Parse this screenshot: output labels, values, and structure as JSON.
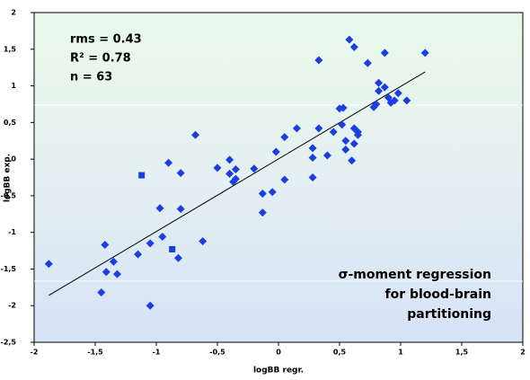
{
  "chart_data": {
    "type": "scatter",
    "x_label": "logBB regr.",
    "y_label": "logBB exp.",
    "stats": [
      "rms = 0.43",
      "R² = 0.78",
      "n = 63"
    ],
    "annotation": [
      "σ-moment regression",
      "for blood-brain",
      "partitioning"
    ],
    "xlim": [
      -2,
      2
    ],
    "ylim": [
      -2.5,
      2
    ],
    "xticks": [
      -2,
      {
        "value": -1.5,
        "label": "-1,5"
      },
      -1,
      {
        "value": -0.5,
        "label": "-0,5"
      },
      0,
      {
        "value": 0.5,
        "label": "0,5"
      },
      1,
      {
        "value": 1.5,
        "label": "1,5"
      },
      2
    ],
    "yticks": [
      {
        "value": -2.5,
        "label": "-2,5"
      },
      -2,
      {
        "value": -1.5,
        "label": "-1,5"
      },
      -1,
      {
        "value": -0.5,
        "label": "-0,5"
      },
      0,
      {
        "value": 0.5,
        "label": "0,5"
      },
      1,
      {
        "value": 1.5,
        "label": "1,5"
      },
      2
    ],
    "series": [
      {
        "color": "#1a3ee0",
        "marker": "diamond",
        "x": [
          -1.88,
          -1.42,
          -1.41,
          -1.35,
          -1.32,
          -1.45,
          -1.15,
          -1.05,
          -1.05,
          -0.97,
          -0.95,
          -0.9,
          -0.8,
          -0.8,
          -0.82,
          -0.68,
          -0.62,
          -0.5,
          -0.4,
          -0.4,
          -0.37,
          -0.35,
          -0.35,
          -0.2,
          -0.13,
          -0.13,
          -0.05,
          -0.02,
          0.05,
          0.05,
          0.15,
          0.28,
          0.28,
          0.28,
          0.33,
          0.33,
          0.4,
          0.45,
          0.5,
          0.52,
          0.53,
          0.55,
          0.55,
          0.58,
          0.6,
          0.62,
          0.62,
          0.62,
          0.65,
          0.65,
          0.73,
          0.78,
          0.8,
          0.82,
          0.82,
          0.87,
          0.87,
          0.9,
          0.92,
          0.95,
          0.98,
          1.05,
          1.2
        ],
        "y": [
          -1.43,
          -1.17,
          -1.54,
          -1.4,
          -1.57,
          -1.82,
          -1.3,
          -1.15,
          -2.0,
          -0.67,
          -1.06,
          -0.05,
          -0.19,
          -0.68,
          -1.35,
          0.33,
          -1.12,
          -0.12,
          -0.01,
          -0.2,
          -0.31,
          -0.14,
          -0.27,
          -0.13,
          -0.47,
          -0.73,
          -0.45,
          0.1,
          0.3,
          -0.28,
          0.42,
          0.15,
          0.02,
          -0.25,
          0.42,
          1.35,
          0.05,
          0.37,
          0.69,
          0.47,
          0.7,
          0.25,
          0.13,
          1.63,
          -0.02,
          0.21,
          0.42,
          1.53,
          0.33,
          0.37,
          1.31,
          0.71,
          0.75,
          0.93,
          1.04,
          0.98,
          1.45,
          0.84,
          0.77,
          0.8,
          0.9,
          0.8,
          1.45
        ]
      },
      {
        "color": "#1a3ee0",
        "marker": "square",
        "x": [
          -1.12,
          -0.87
        ],
        "y": [
          -0.22,
          -1.23
        ]
      }
    ],
    "fit_line": {
      "color": "#000000",
      "x": [
        -1.88,
        1.2
      ],
      "y": [
        -1.86,
        1.19
      ]
    }
  }
}
